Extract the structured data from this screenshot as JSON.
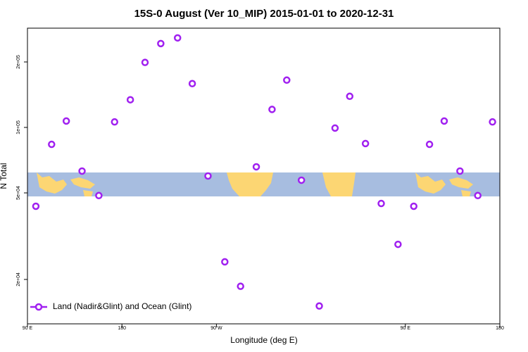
{
  "chart_data": {
    "type": "scatter",
    "title": "15S-0 August (Ver 10_MIP)   2015-01-01 to 2020-12-31",
    "xlabel": "Longitude (deg E)",
    "ylabel": "N Total",
    "x": [
      98,
      113,
      127,
      142,
      158,
      173,
      188,
      202,
      217,
      233,
      247,
      262,
      278,
      293,
      308,
      323,
      337,
      351,
      368,
      383,
      397,
      412,
      427,
      443,
      458,
      473,
      487,
      502,
      519,
      533
    ],
    "series": [
      {
        "name": "Land (Nadir&Glint) and Ocean (Glint)",
        "color": "#a020f0",
        "values": [
          43400,
          83600,
          107000,
          63000,
          48600,
          106000,
          134000,
          199000,
          243000,
          258000,
          159000,
          59800,
          24100,
          18600,
          65900,
          121000,
          165000,
          57200,
          15100,
          99300,
          139000,
          84300,
          44700,
          29000,
          43400,
          83600,
          107000,
          63000,
          48600,
          106000
        ]
      }
    ],
    "xlim": [
      90,
      540
    ],
    "xticks": [
      {
        "value": 90,
        "label": "90 E"
      },
      180,
      {
        "value": 270,
        "label": "90 W"
      },
      {
        "value": 450,
        "label": "90 E"
      },
      {
        "value": 540,
        "label": "180"
      }
    ],
    "ylim": [
      12500,
      286000
    ],
    "log_y": true,
    "yticks": [
      {
        "value": 20000,
        "label": "2e+04"
      },
      {
        "value": 50000,
        "label": "5e+04"
      },
      {
        "value": 100000,
        "label": "1e+05"
      },
      {
        "value": 200000,
        "label": "2e+05"
      }
    ],
    "legend": "bottom-left"
  }
}
